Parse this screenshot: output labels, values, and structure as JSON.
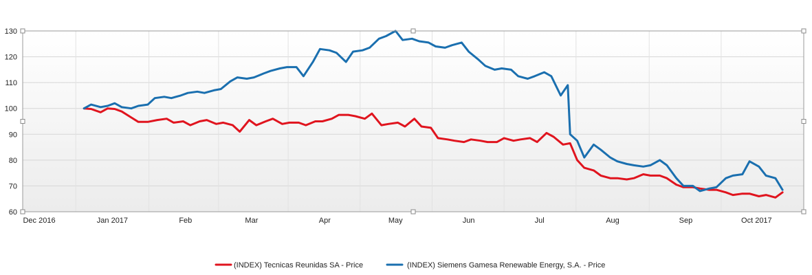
{
  "chart_data": {
    "type": "line",
    "title": "",
    "xlabel": "",
    "ylabel": "",
    "ylim": [
      60,
      130
    ],
    "yticks": [
      60,
      70,
      80,
      90,
      100,
      110,
      120,
      130
    ],
    "xlim": [
      "2016-11-24",
      "2017-10-21"
    ],
    "xticks": [
      {
        "date": "2016-12-01",
        "label": "Dec 2016"
      },
      {
        "date": "2017-01-01",
        "label": "Jan 2017"
      },
      {
        "date": "2017-02-01",
        "label": "Feb"
      },
      {
        "date": "2017-03-01",
        "label": "Mar"
      },
      {
        "date": "2017-04-01",
        "label": "Apr"
      },
      {
        "date": "2017-05-01",
        "label": "May"
      },
      {
        "date": "2017-06-01",
        "label": "Jun"
      },
      {
        "date": "2017-07-01",
        "label": "Jul"
      },
      {
        "date": "2017-08-01",
        "label": "Aug"
      },
      {
        "date": "2017-09-01",
        "label": "Sep"
      },
      {
        "date": "2017-10-01",
        "label": "Oct 2017"
      }
    ],
    "grid": true,
    "legend_position": "bottom",
    "series": [
      {
        "name": "(INDEX) Tecnicas Reunidas SA - Price",
        "color": "#e0141e",
        "points": [
          [
            "2016-12-20",
            100.0
          ],
          [
            "2016-12-23",
            99.8
          ],
          [
            "2016-12-27",
            98.5
          ],
          [
            "2016-12-30",
            100.0
          ],
          [
            "2017-01-02",
            99.8
          ],
          [
            "2017-01-05",
            98.8
          ],
          [
            "2017-01-09",
            96.5
          ],
          [
            "2017-01-12",
            94.8
          ],
          [
            "2017-01-16",
            94.8
          ],
          [
            "2017-01-20",
            95.5
          ],
          [
            "2017-01-24",
            96.0
          ],
          [
            "2017-01-27",
            94.5
          ],
          [
            "2017-01-31",
            95.0
          ],
          [
            "2017-02-03",
            93.5
          ],
          [
            "2017-02-07",
            95.0
          ],
          [
            "2017-02-10",
            95.5
          ],
          [
            "2017-02-14",
            94.0
          ],
          [
            "2017-02-17",
            94.5
          ],
          [
            "2017-02-21",
            93.5
          ],
          [
            "2017-02-24",
            91.0
          ],
          [
            "2017-02-28",
            95.5
          ],
          [
            "2017-03-03",
            93.5
          ],
          [
            "2017-03-07",
            95.0
          ],
          [
            "2017-03-10",
            96.0
          ],
          [
            "2017-03-14",
            94.0
          ],
          [
            "2017-03-17",
            94.5
          ],
          [
            "2017-03-21",
            94.5
          ],
          [
            "2017-03-24",
            93.5
          ],
          [
            "2017-03-28",
            95.0
          ],
          [
            "2017-03-31",
            95.0
          ],
          [
            "2017-04-04",
            96.0
          ],
          [
            "2017-04-07",
            97.5
          ],
          [
            "2017-04-11",
            97.5
          ],
          [
            "2017-04-14",
            97.0
          ],
          [
            "2017-04-18",
            96.0
          ],
          [
            "2017-04-21",
            98.0
          ],
          [
            "2017-04-25",
            93.5
          ],
          [
            "2017-04-28",
            94.0
          ],
          [
            "2017-05-02",
            94.5
          ],
          [
            "2017-05-05",
            93.0
          ],
          [
            "2017-05-09",
            96.0
          ],
          [
            "2017-05-12",
            93.0
          ],
          [
            "2017-05-16",
            92.5
          ],
          [
            "2017-05-19",
            88.5
          ],
          [
            "2017-05-23",
            88.0
          ],
          [
            "2017-05-26",
            87.5
          ],
          [
            "2017-05-30",
            87.0
          ],
          [
            "2017-06-02",
            88.0
          ],
          [
            "2017-06-06",
            87.5
          ],
          [
            "2017-06-09",
            87.0
          ],
          [
            "2017-06-13",
            87.0
          ],
          [
            "2017-06-16",
            88.5
          ],
          [
            "2017-06-20",
            87.5
          ],
          [
            "2017-06-23",
            88.0
          ],
          [
            "2017-06-27",
            88.5
          ],
          [
            "2017-06-30",
            87.0
          ],
          [
            "2017-07-04",
            90.5
          ],
          [
            "2017-07-07",
            89.0
          ],
          [
            "2017-07-11",
            86.0
          ],
          [
            "2017-07-14",
            86.5
          ],
          [
            "2017-07-17",
            80.0
          ],
          [
            "2017-07-20",
            77.0
          ],
          [
            "2017-07-24",
            76.0
          ],
          [
            "2017-07-27",
            74.0
          ],
          [
            "2017-07-31",
            73.0
          ],
          [
            "2017-08-03",
            73.0
          ],
          [
            "2017-08-07",
            72.5
          ],
          [
            "2017-08-10",
            73.0
          ],
          [
            "2017-08-14",
            74.5
          ],
          [
            "2017-08-17",
            74.0
          ],
          [
            "2017-08-21",
            74.0
          ],
          [
            "2017-08-24",
            73.0
          ],
          [
            "2017-08-28",
            70.5
          ],
          [
            "2017-08-31",
            69.5
          ],
          [
            "2017-09-04",
            69.5
          ],
          [
            "2017-09-07",
            69.0
          ],
          [
            "2017-09-11",
            68.5
          ],
          [
            "2017-09-14",
            68.5
          ],
          [
            "2017-09-18",
            67.5
          ],
          [
            "2017-09-21",
            66.5
          ],
          [
            "2017-09-25",
            67.0
          ],
          [
            "2017-09-28",
            67.0
          ],
          [
            "2017-10-02",
            66.0
          ],
          [
            "2017-10-05",
            66.5
          ],
          [
            "2017-10-09",
            65.5
          ],
          [
            "2017-10-12",
            67.5
          ]
        ]
      },
      {
        "name": "(INDEX) Siemens Gamesa Renewable Energy, S.A. - Price",
        "color": "#1a6faf",
        "points": [
          [
            "2016-12-20",
            100.0
          ],
          [
            "2016-12-23",
            101.5
          ],
          [
            "2016-12-27",
            100.5
          ],
          [
            "2016-12-30",
            101.0
          ],
          [
            "2017-01-02",
            102.0
          ],
          [
            "2017-01-05",
            100.5
          ],
          [
            "2017-01-09",
            100.0
          ],
          [
            "2017-01-12",
            101.0
          ],
          [
            "2017-01-16",
            101.5
          ],
          [
            "2017-01-19",
            104.0
          ],
          [
            "2017-01-23",
            104.5
          ],
          [
            "2017-01-26",
            104.0
          ],
          [
            "2017-01-30",
            105.0
          ],
          [
            "2017-02-02",
            106.0
          ],
          [
            "2017-02-06",
            106.5
          ],
          [
            "2017-02-09",
            106.0
          ],
          [
            "2017-02-13",
            107.0
          ],
          [
            "2017-02-16",
            107.5
          ],
          [
            "2017-02-20",
            110.5
          ],
          [
            "2017-02-23",
            112.0
          ],
          [
            "2017-02-27",
            111.5
          ],
          [
            "2017-03-02",
            112.0
          ],
          [
            "2017-03-06",
            113.5
          ],
          [
            "2017-03-09",
            114.5
          ],
          [
            "2017-03-13",
            115.5
          ],
          [
            "2017-03-16",
            116.0
          ],
          [
            "2017-03-20",
            116.0
          ],
          [
            "2017-03-23",
            112.5
          ],
          [
            "2017-03-27",
            118.0
          ],
          [
            "2017-03-30",
            123.0
          ],
          [
            "2017-04-03",
            122.5
          ],
          [
            "2017-04-06",
            121.5
          ],
          [
            "2017-04-10",
            118.0
          ],
          [
            "2017-04-13",
            122.0
          ],
          [
            "2017-04-17",
            122.5
          ],
          [
            "2017-04-20",
            123.5
          ],
          [
            "2017-04-24",
            127.0
          ],
          [
            "2017-04-27",
            128.0
          ],
          [
            "2017-05-01",
            130.0
          ],
          [
            "2017-05-04",
            126.5
          ],
          [
            "2017-05-08",
            127.0
          ],
          [
            "2017-05-11",
            126.0
          ],
          [
            "2017-05-15",
            125.5
          ],
          [
            "2017-05-18",
            124.0
          ],
          [
            "2017-05-22",
            123.5
          ],
          [
            "2017-05-25",
            124.5
          ],
          [
            "2017-05-29",
            125.5
          ],
          [
            "2017-06-01",
            122.0
          ],
          [
            "2017-06-05",
            119.0
          ],
          [
            "2017-06-08",
            116.5
          ],
          [
            "2017-06-12",
            115.0
          ],
          [
            "2017-06-15",
            115.5
          ],
          [
            "2017-06-19",
            115.0
          ],
          [
            "2017-06-22",
            112.5
          ],
          [
            "2017-06-26",
            111.5
          ],
          [
            "2017-06-29",
            112.5
          ],
          [
            "2017-07-03",
            114.0
          ],
          [
            "2017-07-06",
            112.5
          ],
          [
            "2017-07-10",
            105.0
          ],
          [
            "2017-07-13",
            109.0
          ],
          [
            "2017-07-14",
            90.0
          ],
          [
            "2017-07-17",
            87.5
          ],
          [
            "2017-07-20",
            81.0
          ],
          [
            "2017-07-24",
            86.0
          ],
          [
            "2017-07-27",
            84.0
          ],
          [
            "2017-07-31",
            81.0
          ],
          [
            "2017-08-03",
            79.5
          ],
          [
            "2017-08-07",
            78.5
          ],
          [
            "2017-08-10",
            78.0
          ],
          [
            "2017-08-14",
            77.5
          ],
          [
            "2017-08-17",
            78.0
          ],
          [
            "2017-08-21",
            80.0
          ],
          [
            "2017-08-24",
            78.0
          ],
          [
            "2017-08-28",
            73.0
          ],
          [
            "2017-08-31",
            70.0
          ],
          [
            "2017-09-04",
            70.0
          ],
          [
            "2017-09-07",
            68.0
          ],
          [
            "2017-09-11",
            69.0
          ],
          [
            "2017-09-14",
            69.5
          ],
          [
            "2017-09-18",
            73.0
          ],
          [
            "2017-09-21",
            74.0
          ],
          [
            "2017-09-25",
            74.5
          ],
          [
            "2017-09-28",
            79.5
          ],
          [
            "2017-10-02",
            77.5
          ],
          [
            "2017-10-05",
            74.0
          ],
          [
            "2017-10-09",
            73.0
          ],
          [
            "2017-10-12",
            68.5
          ]
        ]
      }
    ]
  }
}
